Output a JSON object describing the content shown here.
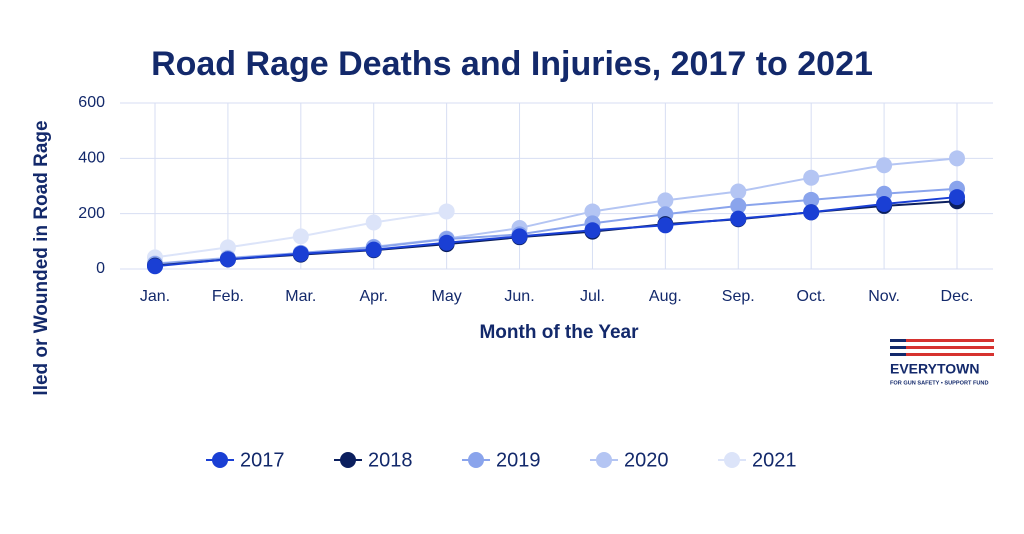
{
  "chart_data": {
    "type": "line",
    "title": "Road Rage Deaths and Injuries, 2017 to 2021",
    "y_label": "lled or Wounded in Road Rage",
    "x_label": "Month of the Year",
    "categories": [
      "Jan.",
      "Feb.",
      "Mar.",
      "Apr.",
      "May",
      "Jun.",
      "Jul.",
      "Aug.",
      "Sep.",
      "Oct.",
      "Nov.",
      "Dec."
    ],
    "series": [
      {
        "name": "2017",
        "color": "#1a3fd4",
        "values": [
          10,
          35,
          55,
          70,
          95,
          118,
          140,
          158,
          182,
          205,
          235,
          260
        ]
      },
      {
        "name": "2018",
        "color": "#0b1f5e",
        "values": [
          12,
          35,
          52,
          68,
          90,
          115,
          135,
          162,
          180,
          205,
          228,
          245
        ]
      },
      {
        "name": "2019",
        "color": "#8aa4ec",
        "values": [
          18,
          38,
          58,
          78,
          108,
          125,
          165,
          198,
          228,
          250,
          272,
          290
        ]
      },
      {
        "name": "2020",
        "color": "#b4c5f3",
        "values": [
          20,
          40,
          58,
          80,
          110,
          148,
          208,
          248,
          280,
          330,
          375,
          400
        ]
      },
      {
        "name": "2021",
        "color": "#dce4f9",
        "values": [
          42,
          78,
          118,
          168,
          208,
          null,
          null,
          null,
          null,
          null,
          null,
          null
        ]
      }
    ],
    "ylim": [
      0,
      600
    ],
    "yticks": [
      0,
      200,
      400,
      600
    ],
    "grid": true,
    "legend": "bottom"
  },
  "logo": {
    "name": "EVERYTOWN",
    "tagline": "FOR GUN SAFETY • SUPPORT FUND"
  }
}
